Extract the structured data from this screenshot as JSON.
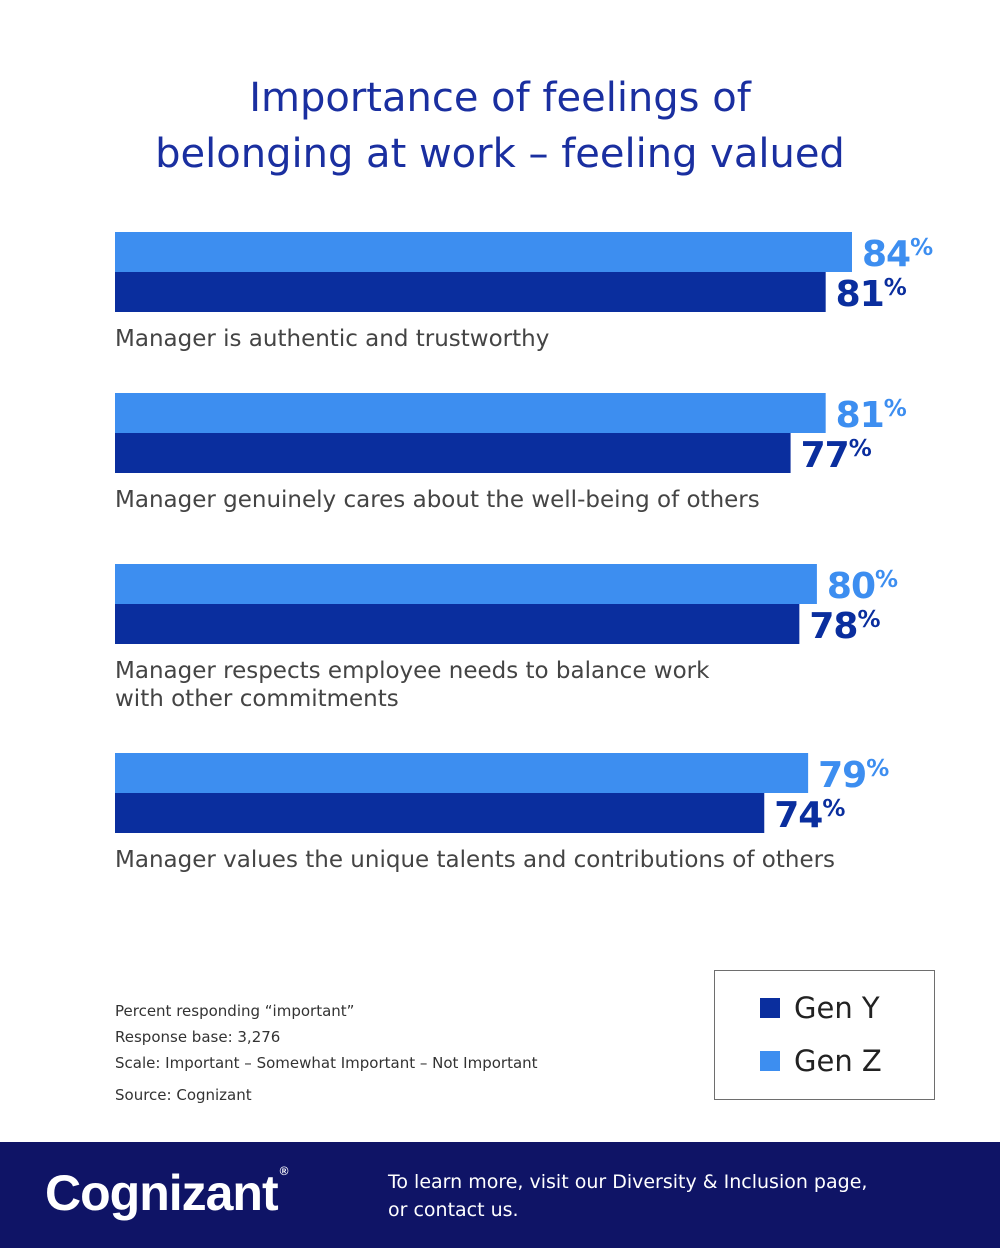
{
  "title_lines": [
    "Importance of feelings of",
    "belonging at work – feeling valued"
  ],
  "colors": {
    "gen_y": "#0a2e9e",
    "gen_z": "#3d8ef0",
    "title": "#1a2fa0",
    "footer_bg": "#0f1466"
  },
  "chart_data": {
    "type": "bar",
    "orientation": "horizontal",
    "value_format": "percent",
    "categories": [
      [
        "Manager is authentic and trustworthy"
      ],
      [
        "Manager genuinely cares about the well-being of others"
      ],
      [
        "Manager respects employee needs to balance work",
        "with other commitments"
      ],
      [
        "Manager values the unique talents and contributions of others"
      ]
    ],
    "series": [
      {
        "name": "Gen Z",
        "values": [
          84,
          81,
          80,
          79
        ]
      },
      {
        "name": "Gen Y",
        "values": [
          81,
          77,
          78,
          74
        ]
      }
    ],
    "legend": {
      "position": "bottom-right"
    },
    "grid": false
  },
  "notes": {
    "lines": [
      "Percent responding “important”",
      "Response base: 3,276",
      "Scale: Important – Somewhat Important – Not Important"
    ],
    "source": "Source: Cognizant"
  },
  "legend": {
    "items": [
      "Gen Y",
      "Gen Z"
    ]
  },
  "footer": {
    "logo": "Cognizant",
    "logo_mark": "®",
    "text_lines": [
      "To learn more, visit our Diversity & Inclusion page,",
      "or contact us."
    ]
  }
}
